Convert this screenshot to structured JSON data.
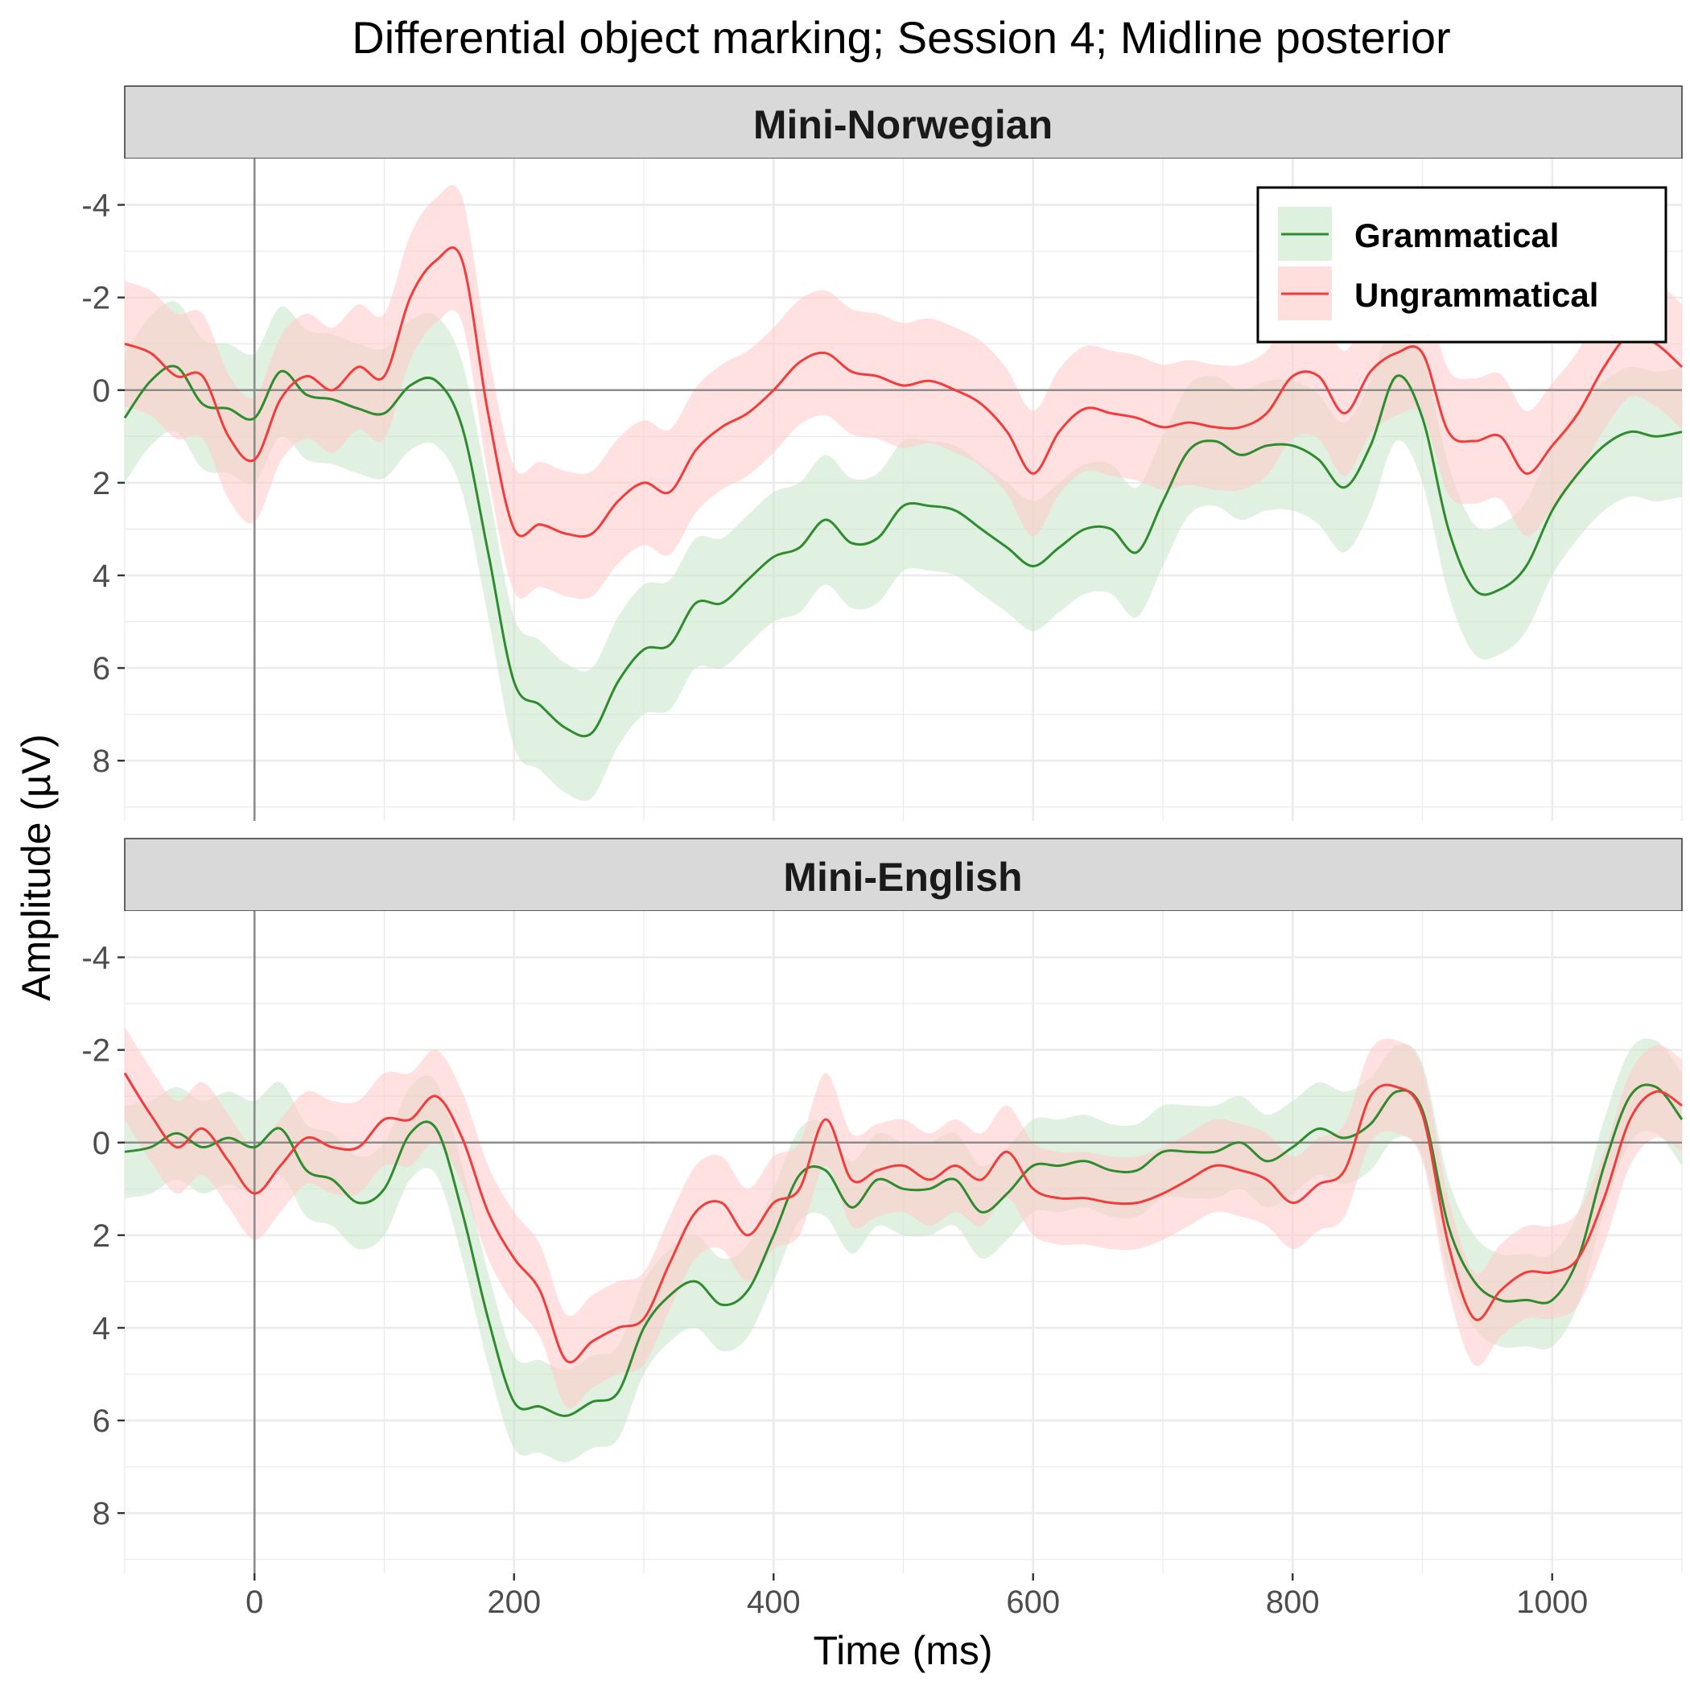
{
  "chart_data": {
    "type": "line",
    "title": "Differential object marking; Session 4; Midline posterior",
    "xlabel": "Time (ms)",
    "ylabel": "Amplitude (µV)",
    "xlim": [
      -100,
      1100
    ],
    "ylim": [
      -5,
      9.3
    ],
    "y_reversed": true,
    "x_ticks": [
      0,
      200,
      400,
      600,
      800,
      1000
    ],
    "y_ticks": [
      -4,
      -2,
      0,
      2,
      4,
      6,
      8
    ],
    "grid": true,
    "legend_position": "top-right",
    "legend": [
      {
        "name": "Grammatical",
        "color": "#2e8b2e",
        "fill": "#c8e6c8"
      },
      {
        "name": "Ungrammatical",
        "color": "#f23c3c",
        "fill": "#ffc8c8"
      }
    ],
    "band_halfwidth": {
      "Mini-Norwegian": {
        "Grammatical": 1.4,
        "Ungrammatical": 1.35
      },
      "Mini-English": {
        "Grammatical": 1.0,
        "Ungrammatical": 1.0
      }
    },
    "panels": [
      {
        "name": "Mini-Norwegian",
        "series": [
          {
            "name": "Grammatical",
            "x": [
              -100,
              -80,
              -60,
              -40,
              -20,
              0,
              20,
              40,
              60,
              80,
              100,
              120,
              140,
              160,
              180,
              200,
              220,
              240,
              260,
              280,
              300,
              320,
              340,
              360,
              380,
              400,
              420,
              440,
              460,
              480,
              500,
              520,
              540,
              560,
              580,
              600,
              620,
              640,
              660,
              680,
              700,
              720,
              740,
              760,
              780,
              800,
              820,
              840,
              860,
              880,
              900,
              920,
              940,
              960,
              980,
              1000,
              1020,
              1040,
              1060,
              1080,
              1100
            ],
            "y": [
              0.6,
              -0.2,
              -0.5,
              0.3,
              0.4,
              0.6,
              -0.4,
              0.1,
              0.2,
              0.4,
              0.5,
              -0.1,
              -0.2,
              0.8,
              3.5,
              6.3,
              6.8,
              7.3,
              7.4,
              6.3,
              5.6,
              5.5,
              4.6,
              4.6,
              4.1,
              3.6,
              3.4,
              2.8,
              3.3,
              3.2,
              2.5,
              2.5,
              2.6,
              3.0,
              3.4,
              3.8,
              3.4,
              3.0,
              3.0,
              3.5,
              2.4,
              1.3,
              1.1,
              1.4,
              1.2,
              1.2,
              1.5,
              2.1,
              1.2,
              -0.3,
              0.6,
              3.0,
              4.3,
              4.3,
              3.8,
              2.6,
              1.8,
              1.2,
              0.9,
              1.0,
              0.9
            ]
          },
          {
            "name": "Ungrammatical",
            "x": [
              -100,
              -80,
              -60,
              -40,
              -20,
              0,
              20,
              40,
              60,
              80,
              100,
              120,
              140,
              160,
              180,
              200,
              220,
              240,
              260,
              280,
              300,
              320,
              340,
              360,
              380,
              400,
              420,
              440,
              460,
              480,
              500,
              520,
              540,
              560,
              580,
              600,
              620,
              640,
              660,
              680,
              700,
              720,
              740,
              760,
              780,
              800,
              820,
              840,
              860,
              880,
              900,
              920,
              940,
              960,
              980,
              1000,
              1020,
              1040,
              1060,
              1080,
              1100
            ],
            "y": [
              -1.0,
              -0.8,
              -0.3,
              -0.3,
              1.0,
              1.5,
              0.2,
              -0.3,
              0.0,
              -0.5,
              -0.3,
              -2.0,
              -2.8,
              -2.8,
              0.5,
              3.0,
              2.9,
              3.1,
              3.1,
              2.4,
              2.0,
              2.2,
              1.3,
              0.8,
              0.5,
              0.0,
              -0.6,
              -0.8,
              -0.4,
              -0.3,
              -0.1,
              -0.2,
              0.0,
              0.3,
              0.9,
              1.8,
              0.9,
              0.4,
              0.5,
              0.6,
              0.8,
              0.7,
              0.8,
              0.8,
              0.5,
              -0.3,
              -0.3,
              0.5,
              -0.4,
              -0.8,
              -0.8,
              0.9,
              1.1,
              1.0,
              1.8,
              1.2,
              0.5,
              -0.5,
              -1.2,
              -1.0,
              -0.5
            ]
          }
        ]
      },
      {
        "name": "Mini-English",
        "series": [
          {
            "name": "Grammatical",
            "x": [
              -100,
              -80,
              -60,
              -40,
              -20,
              0,
              20,
              40,
              60,
              80,
              100,
              120,
              140,
              160,
              180,
              200,
              220,
              240,
              260,
              280,
              300,
              320,
              340,
              360,
              380,
              400,
              420,
              440,
              460,
              480,
              500,
              520,
              540,
              560,
              580,
              600,
              620,
              640,
              660,
              680,
              700,
              720,
              740,
              760,
              780,
              800,
              820,
              840,
              860,
              880,
              900,
              920,
              940,
              960,
              980,
              1000,
              1020,
              1040,
              1060,
              1080,
              1100
            ],
            "y": [
              0.2,
              0.1,
              -0.2,
              0.1,
              -0.1,
              0.1,
              -0.3,
              0.6,
              0.8,
              1.3,
              1.0,
              -0.2,
              -0.3,
              1.5,
              3.8,
              5.6,
              5.7,
              5.9,
              5.6,
              5.4,
              4.0,
              3.3,
              3.0,
              3.5,
              3.2,
              2.0,
              0.7,
              0.6,
              1.4,
              0.8,
              1.0,
              1.0,
              0.8,
              1.5,
              1.1,
              0.5,
              0.5,
              0.4,
              0.6,
              0.6,
              0.2,
              0.2,
              0.2,
              0.0,
              0.4,
              0.1,
              -0.3,
              -0.1,
              -0.4,
              -1.1,
              -0.7,
              1.8,
              3.0,
              3.4,
              3.4,
              3.4,
              2.5,
              0.5,
              -1.0,
              -1.2,
              -0.5
            ]
          },
          {
            "name": "Ungrammatical",
            "x": [
              -100,
              -80,
              -60,
              -40,
              -20,
              0,
              20,
              40,
              60,
              80,
              100,
              120,
              140,
              160,
              180,
              200,
              220,
              240,
              260,
              280,
              300,
              320,
              340,
              360,
              380,
              400,
              420,
              440,
              460,
              480,
              500,
              520,
              540,
              560,
              580,
              600,
              620,
              640,
              660,
              680,
              700,
              720,
              740,
              760,
              780,
              800,
              820,
              840,
              860,
              880,
              900,
              920,
              940,
              960,
              980,
              1000,
              1020,
              1040,
              1060,
              1080,
              1100
            ],
            "y": [
              -1.5,
              -0.6,
              0.1,
              -0.3,
              0.4,
              1.1,
              0.5,
              -0.1,
              0.1,
              0.1,
              -0.5,
              -0.5,
              -1.0,
              -0.1,
              1.5,
              2.5,
              3.2,
              4.7,
              4.3,
              4.0,
              3.8,
              2.6,
              1.5,
              1.3,
              2.0,
              1.3,
              1.0,
              -0.5,
              0.8,
              0.6,
              0.5,
              0.8,
              0.5,
              0.8,
              0.2,
              1.0,
              1.2,
              1.2,
              1.3,
              1.3,
              1.1,
              0.8,
              0.5,
              0.6,
              0.8,
              1.3,
              0.9,
              0.6,
              -1.0,
              -1.2,
              -0.6,
              2.2,
              3.8,
              3.2,
              2.8,
              2.8,
              2.5,
              1.2,
              -0.5,
              -1.1,
              -0.8
            ]
          }
        ]
      }
    ]
  }
}
